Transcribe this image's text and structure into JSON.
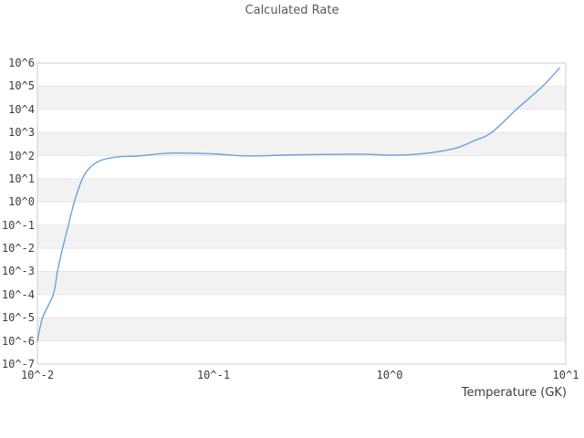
{
  "header": {
    "title": "Calculated Rate"
  },
  "axes": {
    "x_label": "Temperature (GK)",
    "x_tick_labels": [
      "10^-2",
      "10^-1",
      "10^0",
      "10^1"
    ],
    "y_tick_labels": [
      "10^6",
      "10^5",
      "10^4",
      "10^3",
      "10^2",
      "10^1",
      "10^0",
      "10^-1",
      "10^-2",
      "10^-3",
      "10^-4",
      "10^-5",
      "10^-6",
      "10^-7"
    ]
  },
  "colors": {
    "line": "#69a1dd",
    "band_alternate": "#f2f2f2",
    "gridline": "#e6e6e6",
    "plot_border": "#cccccc",
    "title_text": "#595959",
    "tick_text": "#3d3d3d"
  },
  "chart_data": {
    "type": "line",
    "title": "Calculated Rate",
    "xlabel": "Temperature (GK)",
    "ylabel": "",
    "x_scale": "log",
    "y_scale": "log",
    "xlim": [
      0.01,
      10
    ],
    "ylim": [
      1e-07,
      1000000.0
    ],
    "grid": "horizontal-only",
    "alternate_horizontal_bands": true,
    "legend": "none",
    "series": [
      {
        "name": "Calculated Rate",
        "points": [
          [
            0.01,
            1e-06
          ],
          [
            0.0107,
            1e-05
          ],
          [
            0.0123,
            0.0001
          ],
          [
            0.013,
            0.001
          ],
          [
            0.0139,
            0.01
          ],
          [
            0.015,
            0.1
          ],
          [
            0.0162,
            1.0
          ],
          [
            0.018,
            10
          ],
          [
            0.02,
            32
          ],
          [
            0.023,
            63
          ],
          [
            0.029,
            89
          ],
          [
            0.037,
            96
          ],
          [
            0.05,
            121
          ],
          [
            0.06,
            130
          ],
          [
            0.08,
            126
          ],
          [
            0.1,
            119
          ],
          [
            0.155,
            97
          ],
          [
            0.25,
            105
          ],
          [
            0.4,
            112
          ],
          [
            0.73,
            114
          ],
          [
            1.0,
            104
          ],
          [
            1.33,
            111
          ],
          [
            1.8,
            140
          ],
          [
            2.4,
            215
          ],
          [
            3.0,
            430
          ],
          [
            3.8,
            1000
          ],
          [
            5.25,
            10000
          ],
          [
            7.4,
            100000
          ],
          [
            9.2,
            600000
          ]
        ]
      }
    ]
  }
}
